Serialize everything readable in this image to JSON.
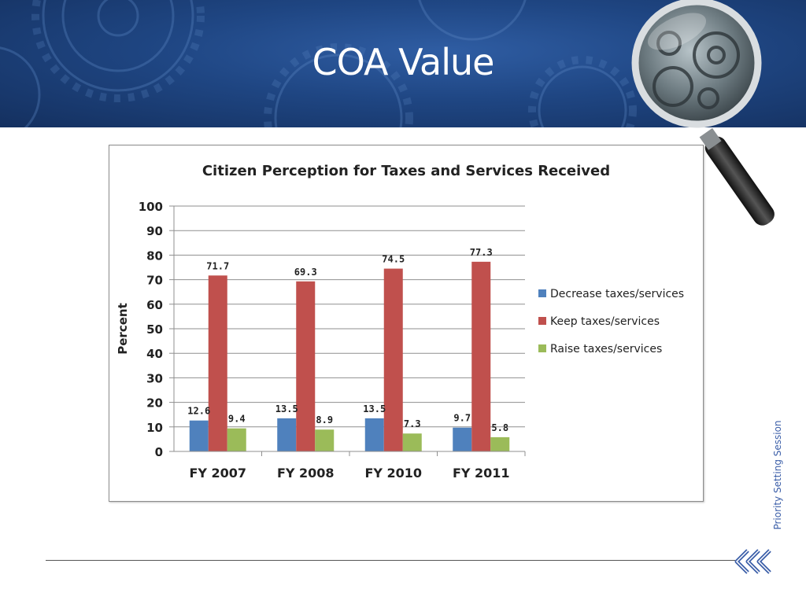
{
  "slide": {
    "title": "COA Value",
    "side_label": "Priority Setting Session",
    "banner_color": "#1f4683",
    "accent_color": "#3b5ea8"
  },
  "icons": {
    "magnifier": "magnifying-glass-icon",
    "footer": "triple-chevron-left-icon"
  },
  "chart_data": {
    "type": "bar",
    "title": "Citizen Perception for Taxes and Services Received",
    "ylabel": "Percent",
    "xlabel": "",
    "ylim": [
      0,
      100
    ],
    "ytick_step": 10,
    "grid": true,
    "legend_position": "right",
    "categories": [
      "FY 2007",
      "FY 2008",
      "FY 2010",
      "FY 2011"
    ],
    "series": [
      {
        "name": "Decrease taxes/services",
        "color": "#4f81bd",
        "values": [
          12.6,
          13.5,
          13.5,
          9.7
        ]
      },
      {
        "name": "Keep taxes/services",
        "color": "#c0504d",
        "values": [
          71.7,
          69.3,
          74.5,
          77.3
        ]
      },
      {
        "name": "Raise taxes/services",
        "color": "#9bbb59",
        "values": [
          9.4,
          8.9,
          7.3,
          5.8
        ]
      }
    ]
  }
}
